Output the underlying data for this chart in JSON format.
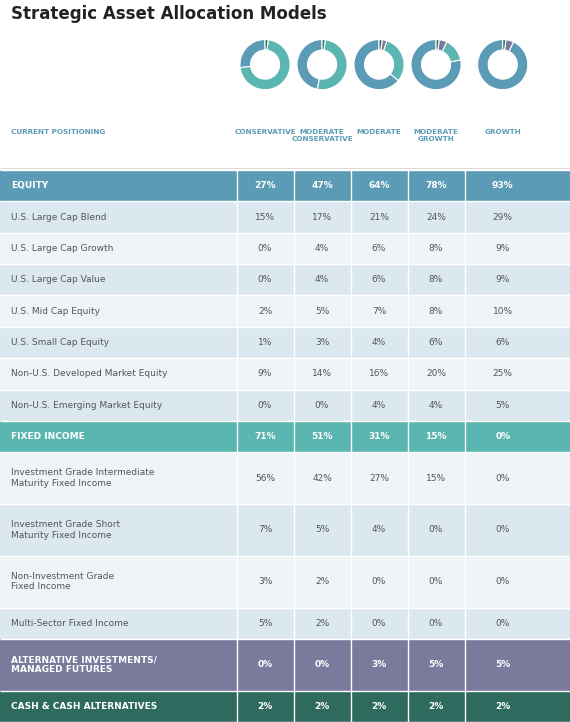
{
  "title": "Strategic Asset Allocation Models",
  "col_names": [
    "CONSERVATIVE",
    "MODERATE\nCONSERVATIVE",
    "MODERATE",
    "MODERATE\nGROWTH",
    "GROWTH"
  ],
  "rows": [
    {
      "label": "EQUITY",
      "values": [
        "27%",
        "47%",
        "64%",
        "78%",
        "93%"
      ],
      "type": "header",
      "color": "#5b9bb5"
    },
    {
      "label": "U.S. Large Cap Blend",
      "values": [
        "15%",
        "17%",
        "21%",
        "24%",
        "29%"
      ],
      "type": "data",
      "color_alt": true
    },
    {
      "label": "U.S. Large Cap Growth",
      "values": [
        "0%",
        "4%",
        "6%",
        "8%",
        "9%"
      ],
      "type": "data",
      "color_alt": false
    },
    {
      "label": "U.S. Large Cap Value",
      "values": [
        "0%",
        "4%",
        "6%",
        "8%",
        "9%"
      ],
      "type": "data",
      "color_alt": true
    },
    {
      "label": "U.S. Mid Cap Equity",
      "values": [
        "2%",
        "5%",
        "7%",
        "8%",
        "10%"
      ],
      "type": "data",
      "color_alt": false
    },
    {
      "label": "U.S. Small Cap Equity",
      "values": [
        "1%",
        "3%",
        "4%",
        "6%",
        "6%"
      ],
      "type": "data",
      "color_alt": true
    },
    {
      "label": "Non-U.S. Developed Market Equity",
      "values": [
        "9%",
        "14%",
        "16%",
        "20%",
        "25%"
      ],
      "type": "data",
      "color_alt": false
    },
    {
      "label": "Non-U.S. Emerging Market Equity",
      "values": [
        "0%",
        "0%",
        "4%",
        "4%",
        "5%"
      ],
      "type": "data",
      "color_alt": true
    },
    {
      "label": "FIXED INCOME",
      "values": [
        "71%",
        "51%",
        "31%",
        "15%",
        "0%"
      ],
      "type": "header",
      "color": "#5bb5b0"
    },
    {
      "label": "Investment Grade Intermediate\nMaturity Fixed Income",
      "values": [
        "56%",
        "42%",
        "27%",
        "15%",
        "0%"
      ],
      "type": "data",
      "color_alt": false
    },
    {
      "label": "Investment Grade Short\nMaturity Fixed Income",
      "values": [
        "7%",
        "5%",
        "4%",
        "0%",
        "0%"
      ],
      "type": "data",
      "color_alt": true
    },
    {
      "label": "Non-Investment Grade\nFixed Income",
      "values": [
        "3%",
        "2%",
        "0%",
        "0%",
        "0%"
      ],
      "type": "data",
      "color_alt": false
    },
    {
      "label": "Multi-Sector Fixed Income",
      "values": [
        "5%",
        "2%",
        "0%",
        "0%",
        "0%"
      ],
      "type": "data",
      "color_alt": true
    },
    {
      "label": "ALTERNATIVE INVESTMENTS/\nMANAGED FUTURES",
      "values": [
        "0%",
        "0%",
        "3%",
        "5%",
        "5%"
      ],
      "type": "header",
      "color": "#7a7a9d"
    },
    {
      "label": "CASH & CASH ALTERNATIVES",
      "values": [
        "2%",
        "2%",
        "2%",
        "2%",
        "2%"
      ],
      "type": "header",
      "color": "#2e6b5e"
    }
  ],
  "donut_data": {
    "conservative": [
      27,
      71,
      0,
      2
    ],
    "moderate_conservative": [
      47,
      51,
      0,
      2
    ],
    "moderate": [
      64,
      31,
      3,
      2
    ],
    "moderate_growth": [
      78,
      15,
      5,
      2
    ],
    "growth": [
      93,
      0,
      5,
      2
    ]
  },
  "donut_colors": [
    "#5b9bb5",
    "#5bb5b0",
    "#7a7a9d",
    "#2e6b5e"
  ],
  "alt_row_color": "#dce8f0",
  "normal_row_color": "#eef4f8",
  "text_color_header": "#ffffff",
  "text_color_data": "#555555",
  "text_color_colheader": "#5b9bb5",
  "bg_color": "#ffffff"
}
